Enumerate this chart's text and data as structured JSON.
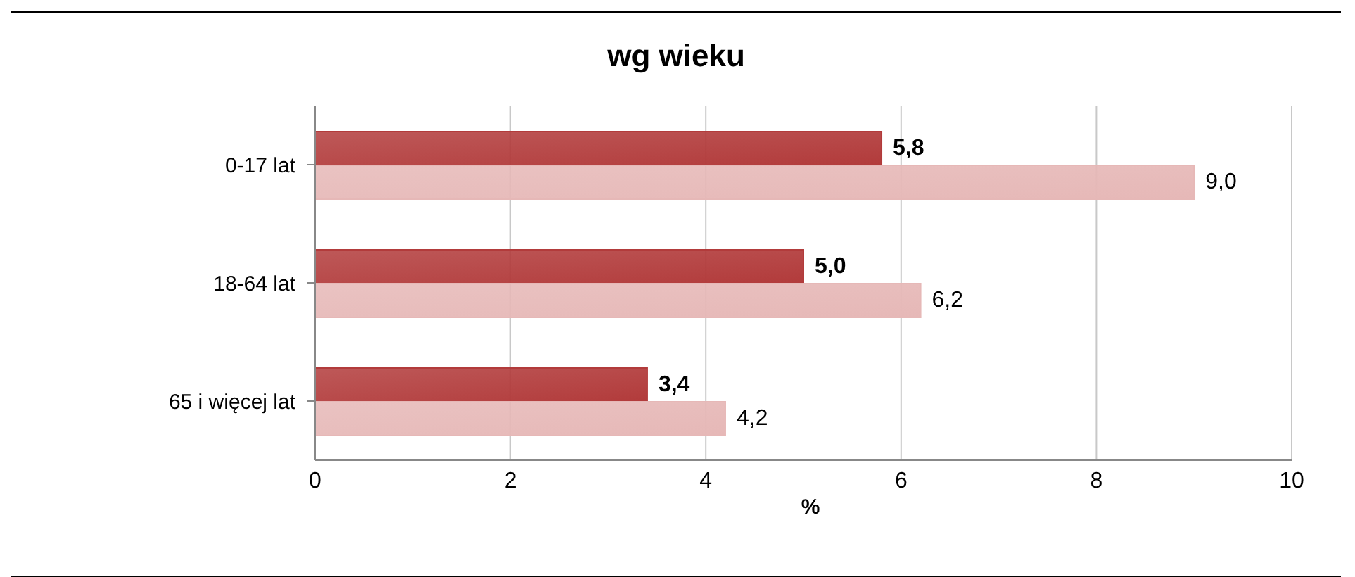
{
  "chart_data": {
    "type": "bar",
    "orientation": "horizontal",
    "title": "wg wieku",
    "xlabel": "%",
    "categories": [
      "0-17 lat",
      "18-64 lat",
      "65 i więcej lat"
    ],
    "series": [
      {
        "color": "#b23b3b",
        "values": [
          5.8,
          5.0,
          3.4
        ],
        "value_labels": [
          "5,8",
          "5,0",
          "3,4"
        ]
      },
      {
        "color": "#e6b8b7",
        "values": [
          9.0,
          6.2,
          4.2
        ],
        "value_labels": [
          "9,0",
          "6,2",
          "4,2"
        ]
      }
    ],
    "xlim": [
      0,
      10
    ],
    "xticks": [
      0,
      2,
      4,
      6,
      8,
      10
    ],
    "grid": "x",
    "legend": false
  }
}
